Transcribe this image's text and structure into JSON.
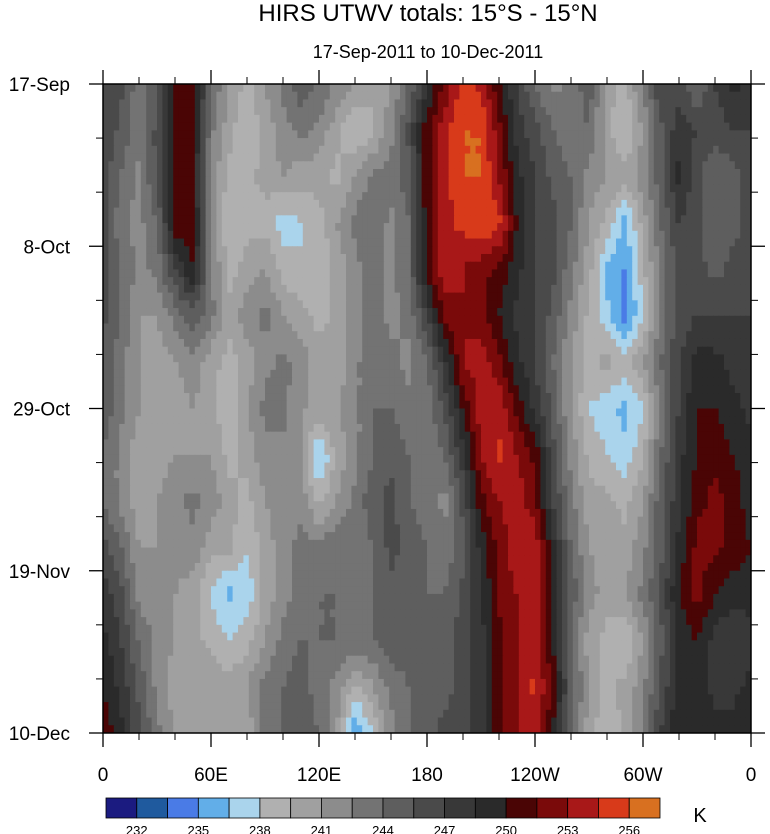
{
  "chart_data": {
    "type": "heatmap",
    "title": "HIRS UTWV totals: 15°S - 15°N",
    "subtitle": "17-Sep-2011 to 10-Dec-2011",
    "xlabel": "",
    "ylabel": "",
    "x_ticks": [
      "0",
      "60E",
      "120E",
      "180",
      "120W",
      "60W",
      "0"
    ],
    "x_tick_lon": [
      0,
      60,
      120,
      180,
      240,
      300,
      360
    ],
    "y_ticks": [
      "17-Sep",
      "8-Oct",
      "29-Oct",
      "19-Nov",
      "10-Dec"
    ],
    "y_tick_day": [
      0,
      21,
      42,
      63,
      84
    ],
    "xlim": [
      0,
      360
    ],
    "ylim_days": [
      0,
      84
    ],
    "colorbar": {
      "units": "K",
      "label_levels": [
        "232",
        "235",
        "238",
        "241",
        "244",
        "247",
        "250",
        "253",
        "256"
      ],
      "levels": [
        232,
        233.5,
        235,
        236.5,
        238,
        239.5,
        241,
        242.5,
        244,
        245.5,
        247,
        248.5,
        250,
        251.5,
        253,
        254.5,
        256
      ],
      "colors": [
        "#1b1b80",
        "#1f5a9e",
        "#4a7be6",
        "#62aee8",
        "#aad4ec",
        "#b0b0b0",
        "#a0a0a0",
        "#8c8c8c",
        "#737373",
        "#5e5e5e",
        "#4a4a4a",
        "#383838",
        "#2a2a2a",
        "#4a0505",
        "#7a0a0a",
        "#a81818",
        "#d83a1a",
        "#d87020"
      ]
    },
    "grid_lon": [
      0,
      10,
      20,
      30,
      40,
      50,
      60,
      70,
      80,
      90,
      100,
      110,
      120,
      130,
      140,
      150,
      160,
      170,
      180,
      190,
      200,
      210,
      220,
      230,
      240,
      250,
      260,
      270,
      280,
      290,
      300,
      310,
      320,
      330,
      340,
      350,
      360
    ],
    "grid_day": [
      0,
      6,
      12,
      18,
      24,
      30,
      36,
      42,
      48,
      54,
      60,
      66,
      72,
      78,
      84
    ],
    "values": [
      [
        247,
        246,
        243,
        245,
        250,
        251,
        244,
        241,
        239,
        241,
        243,
        245,
        244,
        242,
        241,
        240,
        241,
        244,
        248,
        252,
        255,
        254,
        250,
        247,
        244,
        242,
        243,
        245,
        240,
        239,
        243,
        247,
        246,
        244,
        247,
        249,
        248
      ],
      [
        247,
        245,
        243,
        246,
        251,
        251,
        243,
        240,
        238,
        240,
        242,
        243,
        242,
        240,
        238,
        239,
        242,
        246,
        251,
        254,
        256,
        256,
        252,
        248,
        246,
        244,
        243,
        244,
        240,
        238,
        241,
        245,
        248,
        247,
        246,
        247,
        247
      ],
      [
        246,
        244,
        242,
        246,
        251,
        250,
        242,
        239,
        239,
        240,
        241,
        240,
        240,
        239,
        241,
        243,
        243,
        245,
        251,
        254,
        256,
        256,
        253,
        249,
        247,
        245,
        244,
        242,
        241,
        240,
        242,
        245,
        249,
        246,
        244,
        245,
        246
      ],
      [
        246,
        243,
        242,
        244,
        251,
        251,
        242,
        238,
        239,
        239,
        237,
        238,
        239,
        241,
        243,
        244,
        242,
        244,
        251,
        254,
        255,
        256,
        255,
        250,
        247,
        246,
        244,
        241,
        239,
        236,
        240,
        244,
        247,
        246,
        244,
        245,
        246
      ],
      [
        246,
        244,
        242,
        243,
        247,
        250,
        243,
        239,
        240,
        241,
        239,
        238,
        238,
        240,
        242,
        243,
        242,
        244,
        251,
        254,
        253,
        252,
        251,
        249,
        247,
        246,
        243,
        240,
        236,
        235,
        239,
        243,
        246,
        246,
        245,
        246,
        246
      ],
      [
        246,
        244,
        241,
        241,
        243,
        245,
        243,
        240,
        242,
        243,
        241,
        240,
        239,
        240,
        242,
        243,
        242,
        243,
        247,
        252,
        253,
        252,
        250,
        248,
        247,
        245,
        242,
        239,
        237,
        234,
        238,
        243,
        246,
        247,
        247,
        247,
        247
      ],
      [
        245,
        243,
        241,
        240,
        241,
        242,
        240,
        239,
        240,
        242,
        243,
        242,
        240,
        240,
        242,
        244,
        243,
        242,
        244,
        248,
        253,
        254,
        252,
        249,
        247,
        244,
        241,
        239,
        240,
        239,
        241,
        244,
        247,
        249,
        249,
        248,
        247
      ],
      [
        245,
        243,
        241,
        240,
        240,
        241,
        240,
        238,
        241,
        243,
        243,
        241,
        241,
        241,
        242,
        244,
        244,
        243,
        243,
        246,
        250,
        254,
        254,
        251,
        248,
        245,
        241,
        238,
        237,
        236,
        238,
        243,
        247,
        250,
        250,
        249,
        248
      ],
      [
        244,
        242,
        240,
        240,
        241,
        241,
        241,
        239,
        240,
        242,
        242,
        241,
        236,
        240,
        242,
        244,
        245,
        244,
        243,
        244,
        248,
        253,
        255,
        253,
        251,
        246,
        242,
        239,
        238,
        237,
        239,
        244,
        248,
        250,
        251,
        250,
        249
      ],
      [
        244,
        242,
        240,
        241,
        242,
        243,
        242,
        240,
        239,
        241,
        242,
        242,
        239,
        241,
        243,
        245,
        246,
        244,
        243,
        242,
        246,
        251,
        253,
        254,
        252,
        247,
        243,
        240,
        240,
        239,
        241,
        245,
        248,
        251,
        252,
        251,
        249
      ],
      [
        246,
        244,
        241,
        241,
        242,
        242,
        240,
        240,
        238,
        240,
        242,
        243,
        243,
        244,
        243,
        244,
        246,
        245,
        244,
        243,
        245,
        249,
        252,
        254,
        254,
        249,
        244,
        241,
        240,
        240,
        242,
        245,
        249,
        252,
        252,
        251,
        250
      ],
      [
        248,
        246,
        242,
        241,
        241,
        240,
        238,
        236,
        237,
        240,
        242,
        243,
        244,
        244,
        243,
        244,
        245,
        245,
        244,
        244,
        246,
        248,
        252,
        253,
        254,
        250,
        245,
        242,
        240,
        241,
        243,
        246,
        250,
        252,
        250,
        249,
        249
      ],
      [
        249,
        247,
        244,
        242,
        241,
        240,
        239,
        238,
        239,
        241,
        243,
        244,
        244,
        244,
        244,
        244,
        245,
        245,
        244,
        245,
        246,
        248,
        251,
        253,
        254,
        250,
        244,
        240,
        239,
        238,
        241,
        245,
        249,
        250,
        248,
        247,
        248
      ],
      [
        250,
        248,
        245,
        242,
        240,
        240,
        241,
        240,
        241,
        243,
        244,
        245,
        243,
        242,
        239,
        241,
        243,
        244,
        245,
        245,
        246,
        248,
        251,
        253,
        255,
        251,
        245,
        241,
        239,
        240,
        242,
        246,
        249,
        249,
        248,
        248,
        249
      ],
      [
        251,
        249,
        246,
        243,
        241,
        241,
        240,
        240,
        240,
        243,
        244,
        245,
        244,
        241,
        235,
        238,
        242,
        244,
        245,
        246,
        246,
        248,
        251,
        253,
        254,
        250,
        244,
        240,
        238,
        240,
        243,
        247,
        250,
        250,
        249,
        249,
        250
      ]
    ]
  }
}
